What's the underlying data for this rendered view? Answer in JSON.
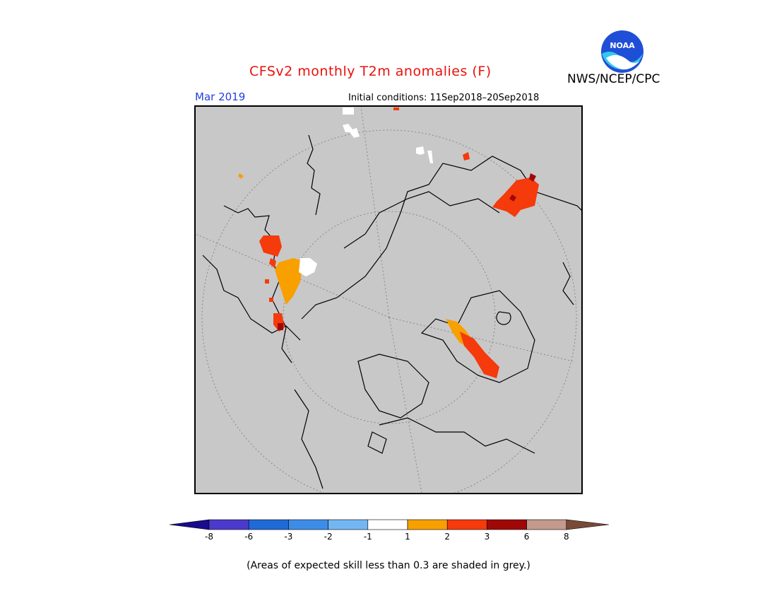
{
  "header": {
    "title": "CFSv2 monthly T2m anomalies (F)",
    "agency": "NWS/NCEP/CPC",
    "logo_text": "NOAA",
    "month": "Mar 2019",
    "initial_conditions": "Initial conditions: 11Sep2018–20Sep2018"
  },
  "colors": {
    "title": "#e8120c",
    "month": "#2440e0",
    "map_background": "#c8c8c8",
    "noaa_blue": "#1f4fd6",
    "noaa_cyan": "#33c8f0"
  },
  "colorbar": {
    "ticks": [
      "-8",
      "-6",
      "-3",
      "-2",
      "-1",
      "1",
      "2",
      "3",
      "6",
      "8"
    ],
    "colors": [
      "#1a0a8c",
      "#4b3acc",
      "#1f6ad6",
      "#3d8de8",
      "#74b6f2",
      "#ffffff",
      "#f7a000",
      "#f53a0c",
      "#a00808",
      "#c49a8c",
      "#7a4a38"
    ]
  },
  "footnote": "(Areas of expected skill less than 0.3 are shaded in grey.)"
}
